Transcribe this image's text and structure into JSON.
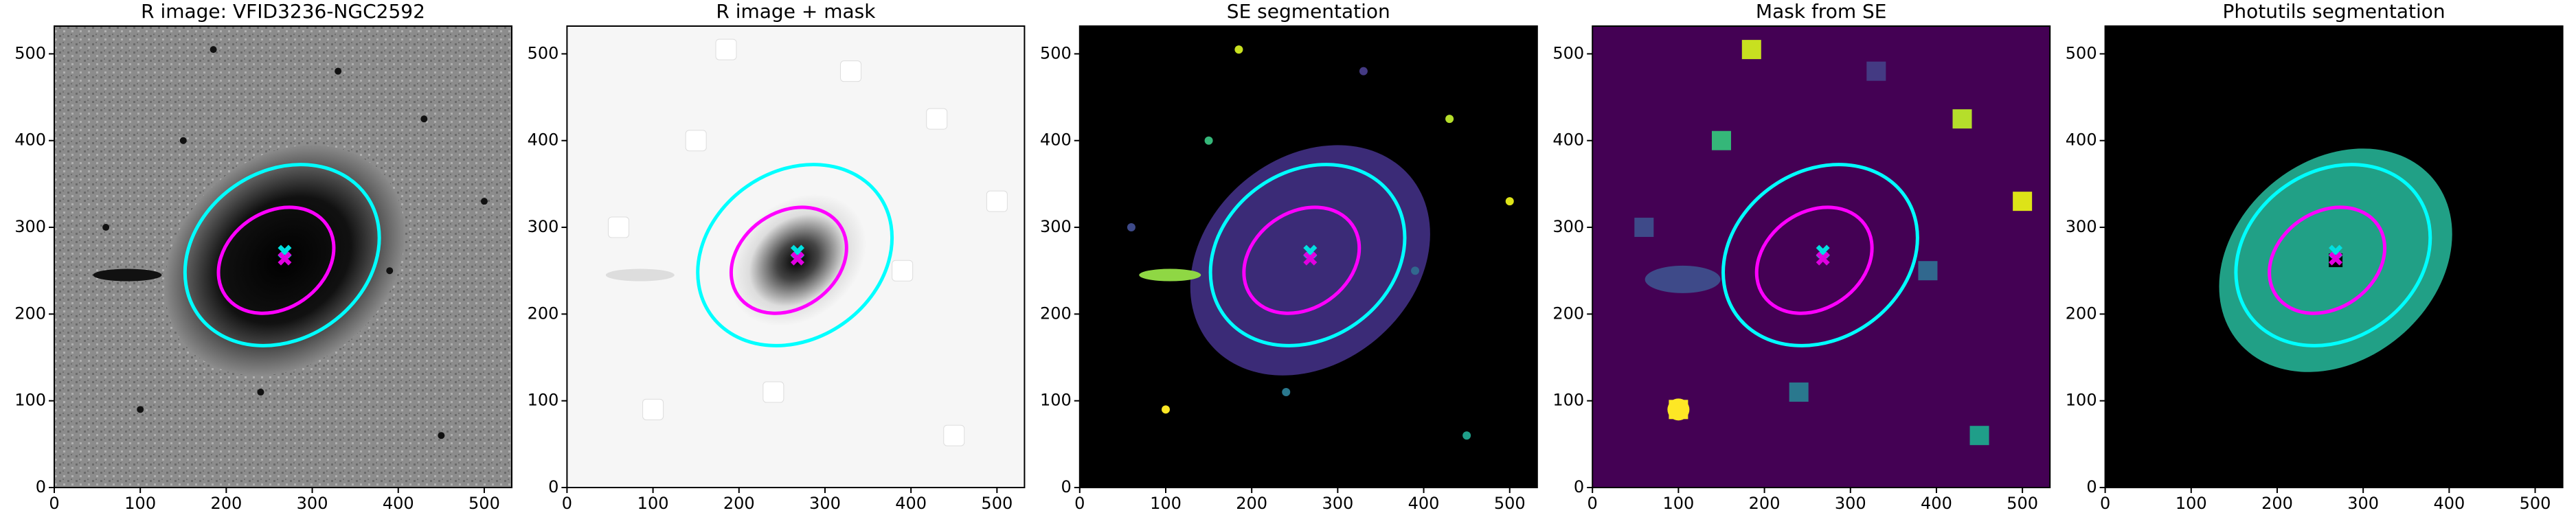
{
  "chart_data": [
    {
      "type": "image",
      "title": "R image: VFID3236-NGC2592",
      "xlim": [
        0,
        532
      ],
      "ylim": [
        0,
        532
      ],
      "xticks": [
        0,
        100,
        200,
        300,
        400,
        500
      ],
      "yticks": [
        0,
        100,
        200,
        300,
        400,
        500
      ]
    },
    {
      "type": "image",
      "title": "R image + mask",
      "xlim": [
        0,
        532
      ],
      "ylim": [
        0,
        532
      ],
      "xticks": [
        0,
        100,
        200,
        300,
        400,
        500
      ],
      "yticks": [
        0,
        100,
        200,
        300,
        400,
        500
      ]
    },
    {
      "type": "image",
      "title": "SE segmentation",
      "xlim": [
        0,
        532
      ],
      "ylim": [
        0,
        532
      ],
      "xticks": [
        0,
        100,
        200,
        300,
        400,
        500
      ],
      "yticks": [
        0,
        100,
        200,
        300,
        400,
        500
      ]
    },
    {
      "type": "image",
      "title": "Mask from SE",
      "xlim": [
        0,
        532
      ],
      "ylim": [
        0,
        532
      ],
      "xticks": [
        0,
        100,
        200,
        300,
        400,
        500
      ],
      "yticks": [
        0,
        100,
        200,
        300,
        400,
        500
      ]
    },
    {
      "type": "image",
      "title": "Photutils segmentation",
      "xlim": [
        0,
        532
      ],
      "ylim": [
        0,
        532
      ],
      "xticks": [
        0,
        100,
        200,
        300,
        400,
        500
      ],
      "yticks": [
        0,
        100,
        200,
        300,
        400,
        500
      ]
    }
  ]
}
